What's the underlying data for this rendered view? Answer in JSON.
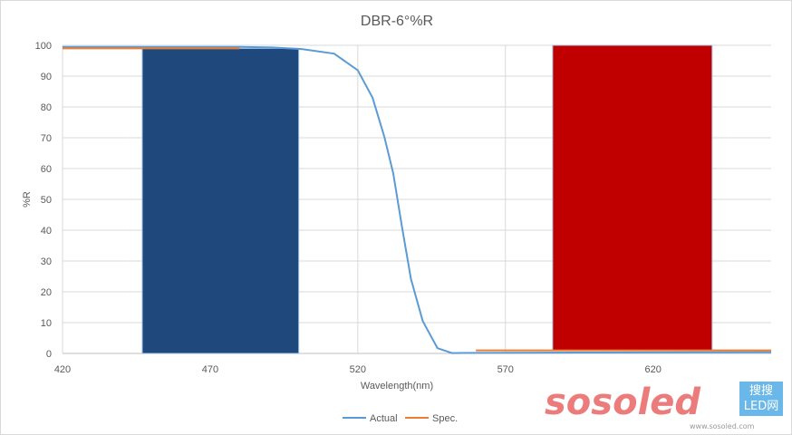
{
  "chart_data": {
    "type": "line",
    "title": "DBR-6°%R",
    "xlabel": "Wavelength(nm)",
    "ylabel": "%R",
    "xlim": [
      420,
      660
    ],
    "ylim": [
      0,
      100
    ],
    "xticks": [
      420,
      470,
      520,
      570,
      620
    ],
    "yticks": [
      0,
      10,
      20,
      30,
      40,
      50,
      60,
      70,
      80,
      90,
      100
    ],
    "grid": true,
    "legend": "bottom",
    "bands": [
      {
        "x0": 447,
        "x1": 500,
        "y0": 0,
        "y1": 99,
        "color": "#1f497d"
      },
      {
        "x0": 586,
        "x1": 640,
        "y0": 1,
        "y1": 100,
        "color": "#c00000"
      }
    ],
    "series": [
      {
        "name": "Actual",
        "color": "#5b9bd5",
        "x": [
          420,
          480,
          491,
          501,
          512,
          520,
          525,
          529,
          532,
          535,
          538,
          542,
          547,
          552,
          560,
          600,
          660
        ],
        "y": [
          99.5,
          99.5,
          99.3,
          98.8,
          97.3,
          91.9,
          83,
          70.3,
          58.5,
          40.9,
          24.2,
          10.5,
          1.7,
          0.1,
          0.2,
          0.3,
          0.4
        ]
      },
      {
        "name": "Spec.",
        "color": "#ed7d31",
        "segments": [
          {
            "x": [
              420,
              480
            ],
            "y": [
              99,
              99
            ]
          },
          {
            "x": [
              560,
              660
            ],
            "y": [
              1,
              1
            ]
          }
        ]
      }
    ]
  },
  "watermark": {
    "logo": "sosoled",
    "brand": "搜搜LED网",
    "url": "www.sosoled.com"
  }
}
